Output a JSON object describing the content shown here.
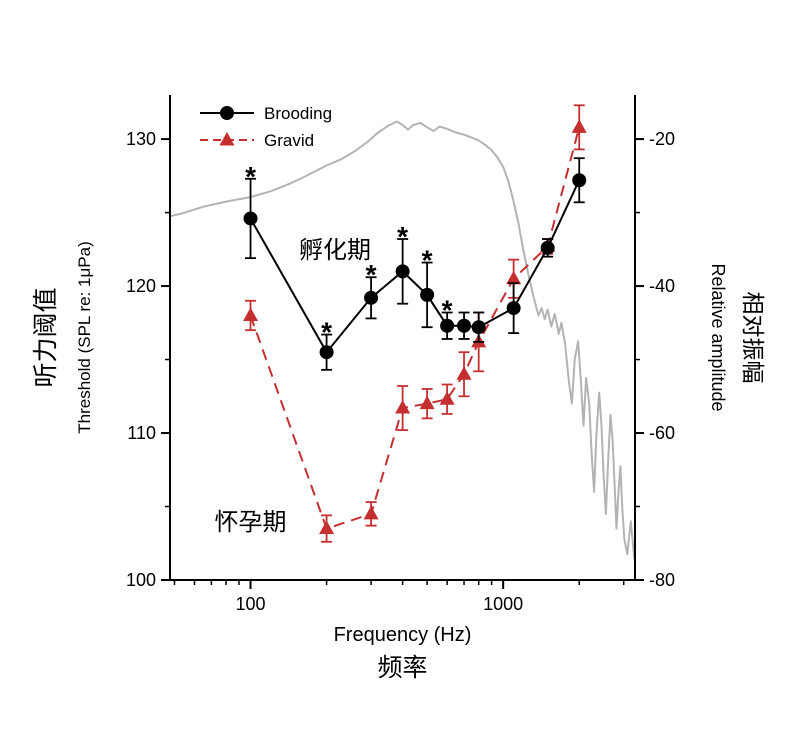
{
  "chart_data": {
    "type": "line",
    "title": "",
    "x_frequencies_hz": [
      100,
      200,
      300,
      400,
      500,
      600,
      700,
      800,
      1100,
      1500,
      2000
    ],
    "series": [
      {
        "name": "Brooding",
        "color": "#000000",
        "marker": "circle",
        "line_style": "solid",
        "values": [
          124.6,
          115.5,
          119.2,
          121.0,
          119.4,
          117.3,
          117.3,
          117.2,
          118.5,
          122.6,
          127.2
        ],
        "errors": [
          2.7,
          1.2,
          1.4,
          2.2,
          2.2,
          0.9,
          0.9,
          1.0,
          1.7,
          0.6,
          1.5
        ]
      },
      {
        "name": "Gravid",
        "color": "#c62f2f",
        "marker": "triangle",
        "line_style": "dashed",
        "values": [
          118.0,
          103.5,
          104.5,
          111.7,
          112.0,
          112.3,
          114.0,
          116.2,
          120.5,
          122.7,
          130.8
        ],
        "errors": [
          1.0,
          0.9,
          0.8,
          1.5,
          1.0,
          1.0,
          1.5,
          2.0,
          1.3,
          0.5,
          1.5
        ]
      }
    ],
    "significance_marks": {
      "symbol": "*",
      "series": "Brooding",
      "x": [
        100,
        200,
        300,
        400,
        500,
        600
      ]
    },
    "spectrum_overlay": {
      "name": "relative-amplitude-spectrum",
      "color": "#b3b3b3",
      "axis": "right",
      "points": [
        [
          48,
          -30.5
        ],
        [
          55,
          -30.0
        ],
        [
          65,
          -29.2
        ],
        [
          80,
          -28.5
        ],
        [
          100,
          -27.9
        ],
        [
          120,
          -27.1
        ],
        [
          140,
          -26.2
        ],
        [
          160,
          -25.3
        ],
        [
          180,
          -24.4
        ],
        [
          200,
          -23.6
        ],
        [
          230,
          -22.7
        ],
        [
          260,
          -21.6
        ],
        [
          290,
          -20.4
        ],
        [
          320,
          -19.1
        ],
        [
          350,
          -18.2
        ],
        [
          380,
          -17.6
        ],
        [
          400,
          -18.1
        ],
        [
          420,
          -18.7
        ],
        [
          440,
          -18.1
        ],
        [
          470,
          -17.8
        ],
        [
          500,
          -18.4
        ],
        [
          530,
          -18.9
        ],
        [
          560,
          -18.3
        ],
        [
          600,
          -18.6
        ],
        [
          650,
          -19.1
        ],
        [
          700,
          -19.4
        ],
        [
          750,
          -19.8
        ],
        [
          800,
          -20.2
        ],
        [
          850,
          -20.8
        ],
        [
          900,
          -21.5
        ],
        [
          950,
          -22.5
        ],
        [
          1000,
          -23.8
        ],
        [
          1050,
          -25.8
        ],
        [
          1100,
          -28.5
        ],
        [
          1150,
          -31.5
        ],
        [
          1200,
          -35.0
        ],
        [
          1260,
          -38.5
        ],
        [
          1320,
          -41.5
        ],
        [
          1380,
          -44.0
        ],
        [
          1420,
          -43.0
        ],
        [
          1460,
          -44.5
        ],
        [
          1500,
          -43.2
        ],
        [
          1550,
          -45.5
        ],
        [
          1600,
          -43.8
        ],
        [
          1660,
          -46.5
        ],
        [
          1700,
          -45.0
        ],
        [
          1760,
          -48.0
        ],
        [
          1820,
          -53.0
        ],
        [
          1870,
          -56.0
        ],
        [
          1920,
          -50.0
        ],
        [
          1980,
          -47.5
        ],
        [
          2030,
          -53.0
        ],
        [
          2080,
          -59.0
        ],
        [
          2130,
          -52.5
        ],
        [
          2190,
          -56.0
        ],
        [
          2240,
          -63.0
        ],
        [
          2290,
          -68.0
        ],
        [
          2340,
          -60.0
        ],
        [
          2400,
          -54.5
        ],
        [
          2450,
          -59.0
        ],
        [
          2500,
          -66.0
        ],
        [
          2550,
          -71.0
        ],
        [
          2610,
          -63.0
        ],
        [
          2660,
          -57.5
        ],
        [
          2710,
          -61.0
        ],
        [
          2760,
          -67.0
        ],
        [
          2810,
          -73.0
        ],
        [
          2860,
          -68.0
        ],
        [
          2910,
          -64.5
        ],
        [
          2960,
          -70.0
        ],
        [
          3020,
          -74.5
        ],
        [
          3100,
          -76.5
        ],
        [
          3200,
          -72.0
        ],
        [
          3300,
          -77.0
        ]
      ]
    },
    "axes": {
      "x": {
        "scale": "log",
        "min": 48,
        "max": 3325,
        "major_ticks": [
          100,
          1000
        ],
        "minor_ticks": [
          50,
          60,
          70,
          80,
          90,
          200,
          300,
          400,
          500,
          600,
          700,
          800,
          900,
          2000,
          3000
        ],
        "label_en": "Frequency (Hz)",
        "label_zh": "频率"
      },
      "y_left": {
        "scale": "linear",
        "min": 100,
        "max": 133,
        "major_ticks": [
          100,
          110,
          120,
          130
        ],
        "minor_ticks": [
          105,
          115,
          125
        ],
        "label_zh": "听力阈值",
        "label_en": "Threshold (SPL re: 1μPa)"
      },
      "y_right": {
        "scale": "linear",
        "min": -80,
        "max": -14,
        "major_ticks": [
          -20,
          -40,
          -60,
          -80
        ],
        "minor_ticks": [
          -30,
          -50,
          -70
        ],
        "label_en": "Relative amplitude",
        "label_zh": "相对振幅"
      }
    },
    "annotations": [
      {
        "name": "annotation-brooding-period-zh",
        "text": "孵化期",
        "anchor_freq_hz": 216,
        "anchor_value": 121.9,
        "color": "#000000"
      },
      {
        "name": "annotation-gravid-period-zh",
        "text": "怀孕期",
        "anchor_freq_hz": 100,
        "anchor_value": 103.4,
        "color": "#000000"
      }
    ],
    "legend": {
      "position": "top-left",
      "entries": [
        "Brooding",
        "Gravid"
      ]
    }
  }
}
